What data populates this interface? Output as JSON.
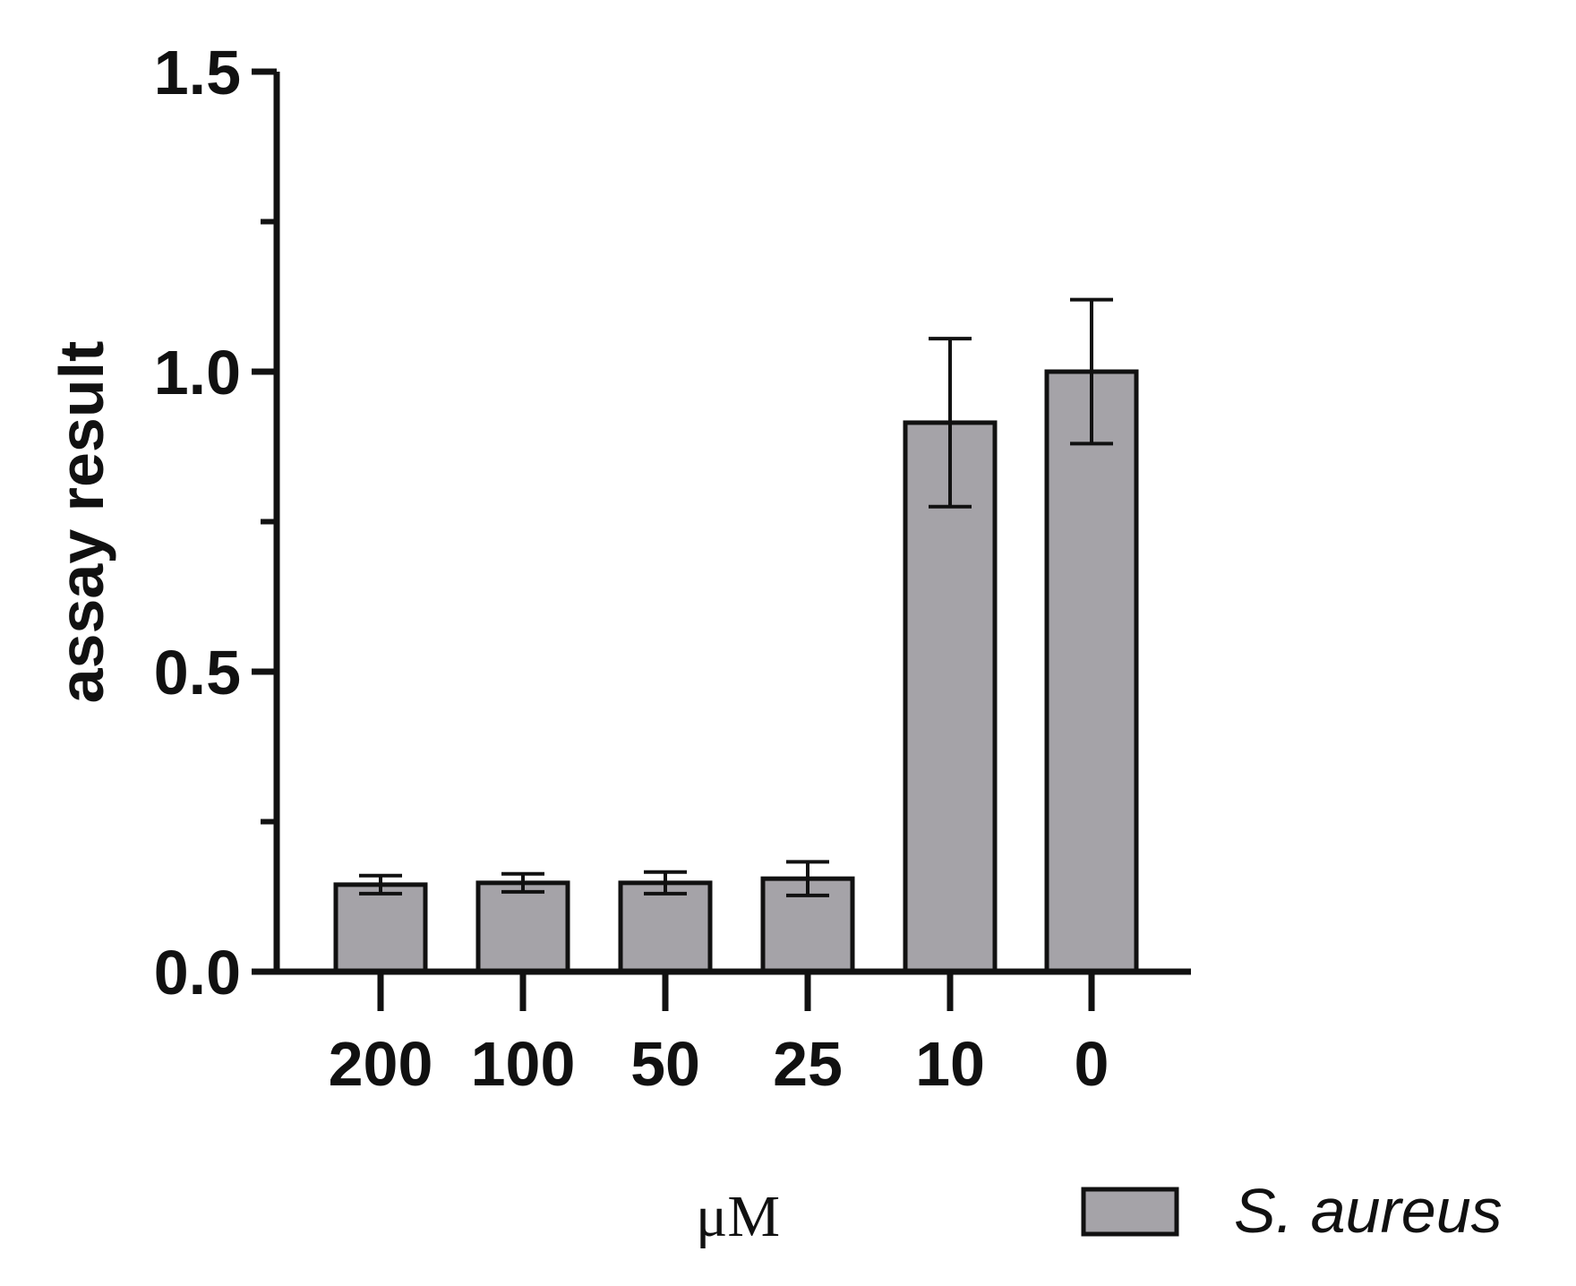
{
  "chart_data": {
    "type": "bar",
    "categories": [
      "200",
      "100",
      "50",
      "25",
      "10",
      "0"
    ],
    "series": [
      {
        "name": "S. aureus",
        "values": [
          0.145,
          0.148,
          0.148,
          0.155,
          0.915,
          1.0
        ],
        "errors": [
          0.015,
          0.015,
          0.018,
          0.028,
          0.14,
          0.12
        ],
        "color": "#a5a3a8"
      }
    ],
    "xlabel": "μM",
    "ylabel": "assay result",
    "ylim": [
      0,
      1.5
    ],
    "yticks": [
      {
        "value": 0,
        "label": "0.0"
      },
      {
        "value": 0.5,
        "label": "0.5"
      },
      {
        "value": 1.0,
        "label": "1.0"
      },
      {
        "value": 1.5,
        "label": "1.5"
      }
    ],
    "y_minor_ticks": [
      0.25,
      0.75,
      1.25
    ],
    "grid": false,
    "legend": {
      "position": "bottom-right"
    },
    "colors": {
      "bar_fill": "#a5a3a8",
      "outline": "#111111"
    }
  }
}
